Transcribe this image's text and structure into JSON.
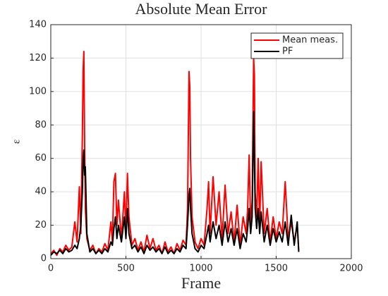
{
  "chart_data": {
    "type": "line",
    "title": "Absolute Mean Error",
    "x_label": "Frame",
    "y_label": "ε",
    "x": [
      0,
      20,
      40,
      60,
      80,
      100,
      120,
      140,
      160,
      175,
      190,
      200,
      210,
      215,
      220,
      225,
      230,
      240,
      260,
      280,
      300,
      320,
      340,
      360,
      380,
      400,
      410,
      420,
      430,
      440,
      450,
      470,
      490,
      500,
      510,
      520,
      540,
      560,
      580,
      600,
      620,
      640,
      660,
      680,
      700,
      720,
      740,
      760,
      780,
      800,
      820,
      840,
      860,
      880,
      900,
      910,
      920,
      925,
      930,
      940,
      960,
      980,
      1000,
      1020,
      1040,
      1050,
      1060,
      1080,
      1100,
      1120,
      1140,
      1160,
      1180,
      1200,
      1220,
      1240,
      1260,
      1280,
      1300,
      1310,
      1320,
      1330,
      1340,
      1350,
      1355,
      1360,
      1370,
      1380,
      1390,
      1400,
      1420,
      1440,
      1460,
      1480,
      1500,
      1520,
      1540,
      1560,
      1580,
      1600,
      1620,
      1640,
      1650
    ],
    "series": [
      {
        "name": "Mean meas.",
        "color": "#ff0000",
        "values": [
          3,
          5,
          2,
          6,
          4,
          8,
          5,
          7,
          22,
          10,
          43,
          15,
          74,
          112,
          124,
          70,
          30,
          12,
          5,
          8,
          3,
          6,
          4,
          9,
          5,
          22,
          10,
          46,
          51,
          20,
          35,
          12,
          40,
          15,
          51,
          25,
          8,
          12,
          5,
          10,
          4,
          14,
          6,
          12,
          5,
          8,
          3,
          10,
          4,
          7,
          3,
          9,
          5,
          11,
          8,
          30,
          112,
          103,
          60,
          25,
          10,
          6,
          12,
          8,
          30,
          46,
          15,
          49,
          20,
          40,
          12,
          44,
          15,
          28,
          10,
          32,
          8,
          25,
          15,
          30,
          62,
          20,
          35,
          120,
          110,
          40,
          25,
          60,
          20,
          58,
          15,
          30,
          10,
          25,
          12,
          22,
          15,
          46,
          12,
          22,
          10,
          20,
          5
        ]
      },
      {
        "name": "PF",
        "color": "#000000",
        "values": [
          2,
          4,
          3,
          5,
          3,
          6,
          4,
          5,
          8,
          6,
          12,
          20,
          40,
          58,
          65,
          50,
          55,
          15,
          4,
          6,
          3,
          5,
          3,
          6,
          4,
          10,
          8,
          18,
          25,
          12,
          20,
          10,
          25,
          12,
          30,
          15,
          6,
          8,
          4,
          7,
          3,
          8,
          5,
          7,
          4,
          6,
          3,
          7,
          3,
          5,
          3,
          6,
          4,
          8,
          6,
          20,
          38,
          42,
          30,
          15,
          6,
          4,
          8,
          6,
          15,
          20,
          10,
          22,
          12,
          20,
          8,
          22,
          10,
          18,
          8,
          18,
          6,
          15,
          10,
          18,
          30,
          15,
          25,
          88,
          60,
          30,
          18,
          30,
          15,
          28,
          10,
          20,
          8,
          18,
          10,
          16,
          10,
          22,
          8,
          26,
          8,
          22,
          4
        ]
      }
    ],
    "xlim": [
      0,
      2000
    ],
    "xticks": [
      0,
      500,
      1000,
      1500,
      2000
    ],
    "ylim": [
      0,
      140
    ],
    "yticks": [
      0,
      20,
      40,
      60,
      80,
      100,
      120,
      140
    ],
    "grid": true,
    "legend": "top-right"
  }
}
